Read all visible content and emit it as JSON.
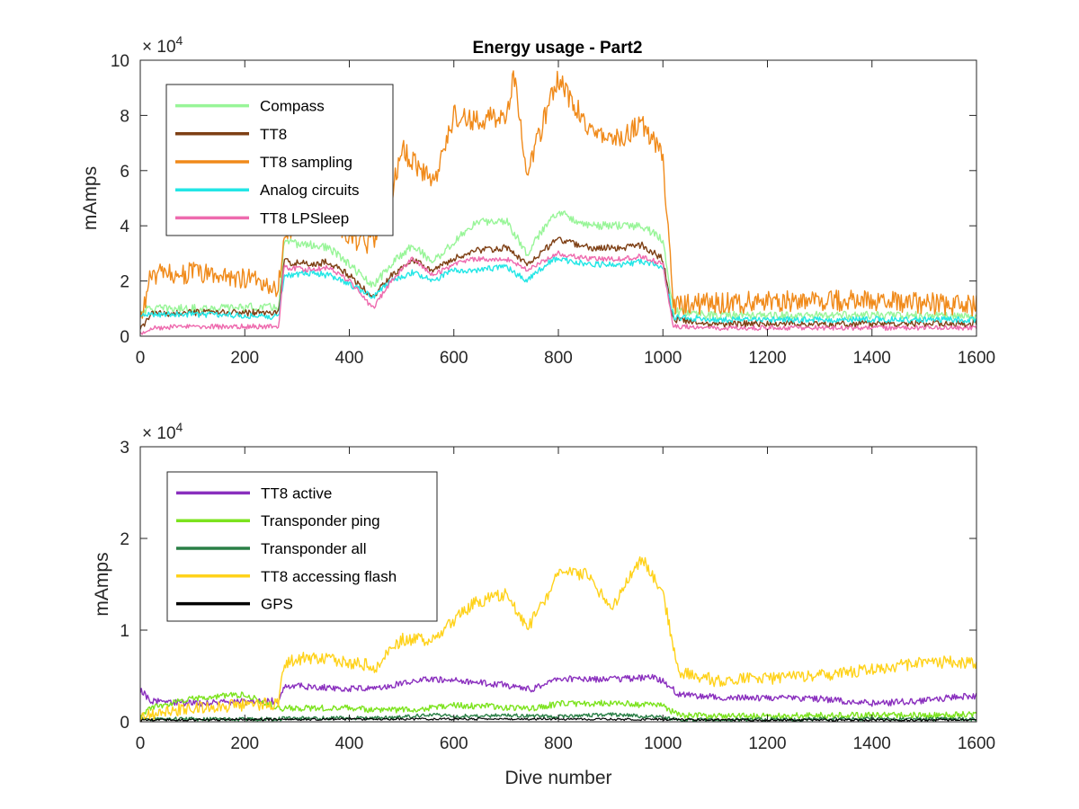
{
  "figure": {
    "title": "Energy usage - Part2"
  },
  "chart_data": [
    {
      "type": "line",
      "title": "Energy usage - Part2",
      "xlabel": "",
      "ylabel": "mAmps",
      "y_exponent_label": "× 10",
      "y_exponent": "4",
      "xlim": [
        0,
        1600
      ],
      "ylim": [
        0,
        100000
      ],
      "xticks": [
        0,
        200,
        400,
        600,
        800,
        1000,
        1200,
        1400,
        1600
      ],
      "yticks": [
        0,
        20000,
        40000,
        60000,
        80000,
        100000
      ],
      "ytick_labels": [
        "0",
        "2",
        "4",
        "6",
        "8",
        "10"
      ],
      "xtick_labels": [
        "0",
        "200",
        "400",
        "600",
        "800",
        "1000",
        "1200",
        "1400",
        "1600"
      ],
      "legend_position": "top-left",
      "grid": false,
      "series": [
        {
          "name": "Compass",
          "color": "#98f598",
          "noise": 1500,
          "x": [
            0,
            20,
            100,
            200,
            265,
            275,
            330,
            360,
            400,
            445,
            480,
            520,
            560,
            600,
            640,
            700,
            740,
            790,
            800,
            860,
            920,
            960,
            1000,
            1020,
            1100,
            1300,
            1500,
            1600
          ],
          "y": [
            9000,
            10000,
            10000,
            10500,
            10500,
            34000,
            33000,
            32000,
            26000,
            18000,
            26000,
            33000,
            27000,
            34000,
            41000,
            42000,
            30000,
            44000,
            45000,
            40000,
            40000,
            40000,
            35000,
            9000,
            7500,
            7500,
            7500,
            7000
          ]
        },
        {
          "name": "TT8",
          "color": "#7e3f14",
          "noise": 1200,
          "x": [
            0,
            20,
            100,
            200,
            265,
            275,
            330,
            360,
            400,
            445,
            480,
            520,
            560,
            600,
            640,
            700,
            740,
            790,
            800,
            860,
            920,
            960,
            1000,
            1020,
            1100,
            1300,
            1500,
            1600
          ],
          "y": [
            2000,
            8000,
            8500,
            8500,
            8500,
            27000,
            26000,
            27000,
            22000,
            14000,
            22000,
            28000,
            24000,
            28000,
            31000,
            32000,
            26000,
            34000,
            35000,
            32000,
            32000,
            33000,
            28000,
            6000,
            4500,
            4500,
            4500,
            4500
          ]
        },
        {
          "name": "TT8 sampling",
          "color": "#f08a1a",
          "noise": 4000,
          "x": [
            0,
            20,
            100,
            200,
            265,
            275,
            330,
            360,
            400,
            445,
            480,
            500,
            560,
            600,
            640,
            700,
            715,
            740,
            790,
            800,
            860,
            920,
            960,
            1000,
            1020,
            1100,
            1300,
            1500,
            1600
          ],
          "y": [
            5000,
            22000,
            23000,
            21000,
            18000,
            38000,
            44000,
            46000,
            36000,
            33000,
            50000,
            68000,
            55000,
            80000,
            78000,
            80000,
            95000,
            60000,
            88000,
            93000,
            75000,
            72000,
            77000,
            65000,
            11000,
            12000,
            13000,
            12000,
            11000
          ]
        },
        {
          "name": "Analog circuits",
          "color": "#22e6e6",
          "noise": 1100,
          "x": [
            0,
            20,
            100,
            200,
            265,
            275,
            330,
            360,
            400,
            445,
            480,
            520,
            560,
            600,
            640,
            700,
            740,
            790,
            800,
            860,
            920,
            960,
            1000,
            1020,
            1100,
            1300,
            1500,
            1600
          ],
          "y": [
            7000,
            8000,
            8000,
            7500,
            7000,
            22000,
            23000,
            22000,
            19000,
            14000,
            20000,
            23000,
            20000,
            24000,
            24000,
            25000,
            20000,
            28000,
            28000,
            26000,
            26000,
            27000,
            25000,
            7000,
            6000,
            6000,
            6000,
            6000
          ]
        },
        {
          "name": "TT8 LPSleep",
          "color": "#ee6aae",
          "noise": 900,
          "x": [
            0,
            20,
            100,
            200,
            265,
            275,
            330,
            360,
            400,
            445,
            480,
            520,
            560,
            600,
            640,
            700,
            740,
            790,
            800,
            860,
            920,
            960,
            1000,
            1020,
            1100,
            1300,
            1500,
            1600
          ],
          "y": [
            1000,
            3000,
            3500,
            3500,
            3500,
            25000,
            24000,
            25000,
            20000,
            10000,
            20000,
            28000,
            22000,
            26000,
            28000,
            28000,
            24000,
            29000,
            30000,
            28000,
            28000,
            29000,
            26000,
            3500,
            3000,
            3000,
            3000,
            3000
          ]
        }
      ]
    },
    {
      "type": "line",
      "title": "",
      "xlabel": "Dive number",
      "ylabel": "mAmps",
      "y_exponent_label": "× 10",
      "y_exponent": "4",
      "xlim": [
        0,
        1600
      ],
      "ylim": [
        0,
        30000
      ],
      "xticks": [
        0,
        200,
        400,
        600,
        800,
        1000,
        1200,
        1400,
        1600
      ],
      "yticks": [
        0,
        10000,
        20000,
        30000
      ],
      "ytick_labels": [
        "0",
        "1",
        "2",
        "3"
      ],
      "xtick_labels": [
        "0",
        "200",
        "400",
        "600",
        "800",
        "1000",
        "1200",
        "1400",
        "1600"
      ],
      "legend_position": "top-left",
      "grid": false,
      "series": [
        {
          "name": "TT8 active",
          "color": "#8a2fbe",
          "noise": 350,
          "x": [
            0,
            20,
            100,
            200,
            265,
            275,
            330,
            400,
            450,
            500,
            560,
            600,
            700,
            750,
            800,
            860,
            920,
            980,
            1000,
            1030,
            1100,
            1200,
            1300,
            1400,
            1500,
            1560,
            1600
          ],
          "y": [
            3500,
            2300,
            2000,
            2200,
            2300,
            4000,
            3800,
            3600,
            3700,
            4200,
            4700,
            4500,
            4000,
            3500,
            4800,
            4600,
            4700,
            4800,
            4500,
            3000,
            2700,
            2600,
            2500,
            2000,
            2300,
            2700,
            2800
          ]
        },
        {
          "name": "Transponder ping",
          "color": "#7ce31e",
          "noise": 350,
          "x": [
            0,
            20,
            100,
            200,
            265,
            275,
            330,
            400,
            450,
            500,
            560,
            600,
            700,
            750,
            800,
            860,
            920,
            980,
            1000,
            1030,
            1100,
            1300,
            1500,
            1600
          ],
          "y": [
            500,
            1500,
            2500,
            3000,
            1500,
            1500,
            1500,
            1500,
            1300,
            1300,
            1500,
            1800,
            1600,
            1400,
            2000,
            2000,
            2000,
            1800,
            1800,
            700,
            600,
            700,
            700,
            800
          ]
        },
        {
          "name": "Transponder all",
          "color": "#2a7f46",
          "noise": 200,
          "x": [
            0,
            200,
            265,
            275,
            400,
            500,
            560,
            600,
            700,
            800,
            900,
            1000,
            1030,
            1300,
            1600
          ],
          "y": [
            300,
            300,
            300,
            400,
            400,
            500,
            800,
            600,
            700,
            600,
            800,
            500,
            200,
            300,
            300
          ]
        },
        {
          "name": "TT8 accessing flash",
          "color": "#ffd21a",
          "noise": 700,
          "x": [
            0,
            20,
            100,
            200,
            265,
            275,
            320,
            400,
            450,
            500,
            560,
            600,
            640,
            700,
            740,
            790,
            800,
            860,
            900,
            960,
            1000,
            1030,
            1100,
            1300,
            1500,
            1600
          ],
          "y": [
            200,
            800,
            1500,
            1800,
            2000,
            6500,
            7000,
            6500,
            6000,
            9000,
            9000,
            11000,
            13000,
            14000,
            10000,
            15000,
            16500,
            16000,
            12000,
            18000,
            14000,
            5500,
            4500,
            5000,
            6500,
            6500
          ]
        },
        {
          "name": "GPS",
          "color": "#000000",
          "noise": 120,
          "x": [
            0,
            400,
            800,
            1200,
            1600
          ],
          "y": [
            200,
            300,
            300,
            200,
            200
          ]
        }
      ]
    }
  ]
}
